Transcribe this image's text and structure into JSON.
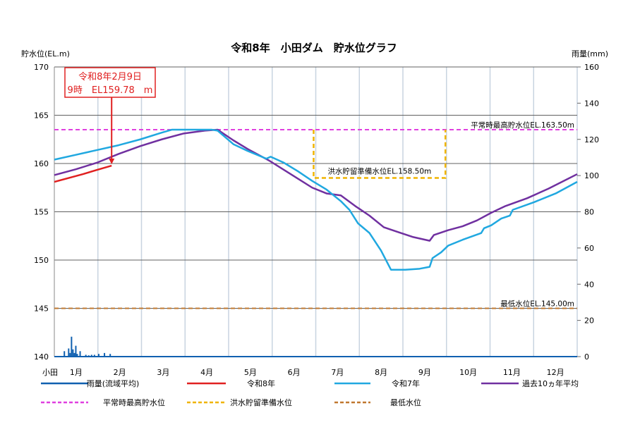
{
  "chart_data": {
    "type": "line",
    "title": "令和8年　小田ダム　貯水位グラフ",
    "ylabel": "貯水位(EL.m)",
    "y2label": "雨量(mm)",
    "ylim": [
      140,
      170
    ],
    "yticks": [
      140,
      145,
      150,
      155,
      160,
      165,
      170
    ],
    "y2lim": [
      0,
      160
    ],
    "y2ticks": [
      0,
      20,
      40,
      60,
      80,
      100,
      120,
      140,
      160
    ],
    "xlabel_prefix": "小田",
    "months": [
      "1月",
      "2月",
      "3月",
      "4月",
      "5月",
      "6月",
      "7月",
      "8月",
      "9月",
      "10月",
      "11月",
      "12月"
    ],
    "x_unit": "day of year",
    "grid": true,
    "annotation": {
      "line1": "令和8年2月9日",
      "line2": "9時　EL159.78　m",
      "day": 40,
      "value": 159.78
    },
    "reference_lines": [
      {
        "name": "平常時最高貯水位",
        "label": "平常時最高貯水位EL.163.50m",
        "value": 163.5,
        "color": "#e040e0"
      },
      {
        "name": "最低水位",
        "label": "最低水位EL.145.00m",
        "value": 145.0,
        "color": "#c07830"
      }
    ],
    "flood_reserve": {
      "name": "洪水貯留準備水位",
      "label": "洪水貯留準備水位EL.158.50m",
      "value": 158.5,
      "from_day": 181,
      "to_day": 273,
      "upper": 163.5,
      "color": "#f0b400"
    },
    "series": [
      {
        "name": "令和8年",
        "color": "#e02020",
        "points": [
          [
            0,
            158.1
          ],
          [
            10,
            158.5
          ],
          [
            20,
            158.9
          ],
          [
            30,
            159.35
          ],
          [
            40,
            159.78
          ]
        ]
      },
      {
        "name": "令和7年",
        "color": "#20a8e0",
        "points": [
          [
            0,
            160.4
          ],
          [
            15,
            160.9
          ],
          [
            30,
            161.4
          ],
          [
            45,
            161.9
          ],
          [
            60,
            162.5
          ],
          [
            75,
            163.2
          ],
          [
            82,
            163.5
          ],
          [
            110,
            163.5
          ],
          [
            114,
            163.4
          ],
          [
            125,
            162.0
          ],
          [
            135,
            161.3
          ],
          [
            148,
            160.5
          ],
          [
            151,
            160.7
          ],
          [
            160,
            160.1
          ],
          [
            170,
            159.2
          ],
          [
            180,
            158.2
          ],
          [
            190,
            157.3
          ],
          [
            200,
            156.1
          ],
          [
            206,
            155.2
          ],
          [
            212,
            153.8
          ],
          [
            220,
            152.8
          ],
          [
            228,
            151.0
          ],
          [
            235,
            149.0
          ],
          [
            245,
            149.0
          ],
          [
            255,
            149.1
          ],
          [
            262,
            149.3
          ],
          [
            264,
            150.2
          ],
          [
            270,
            150.8
          ],
          [
            275,
            151.5
          ],
          [
            285,
            152.1
          ],
          [
            298,
            152.8
          ],
          [
            300,
            153.3
          ],
          [
            305,
            153.6
          ],
          [
            312,
            154.3
          ],
          [
            318,
            154.6
          ],
          [
            320,
            155.2
          ],
          [
            335,
            156.0
          ],
          [
            350,
            156.9
          ],
          [
            365,
            158.1
          ]
        ]
      },
      {
        "name": "過去10ヵ年平均",
        "color": "#7030a0",
        "points": [
          [
            0,
            158.8
          ],
          [
            15,
            159.4
          ],
          [
            30,
            160.1
          ],
          [
            45,
            161.0
          ],
          [
            60,
            161.8
          ],
          [
            75,
            162.5
          ],
          [
            90,
            163.1
          ],
          [
            105,
            163.4
          ],
          [
            114,
            163.5
          ],
          [
            125,
            162.4
          ],
          [
            135,
            161.5
          ],
          [
            150,
            160.3
          ],
          [
            165,
            158.9
          ],
          [
            180,
            157.5
          ],
          [
            190,
            156.9
          ],
          [
            200,
            156.7
          ],
          [
            210,
            155.6
          ],
          [
            220,
            154.6
          ],
          [
            230,
            153.4
          ],
          [
            240,
            152.9
          ],
          [
            250,
            152.4
          ],
          [
            262,
            152.0
          ],
          [
            265,
            152.6
          ],
          [
            275,
            153.1
          ],
          [
            285,
            153.5
          ],
          [
            295,
            154.1
          ],
          [
            305,
            154.9
          ],
          [
            315,
            155.6
          ],
          [
            330,
            156.4
          ],
          [
            345,
            157.4
          ],
          [
            365,
            158.9
          ]
        ]
      }
    ],
    "rain": {
      "name": "雨量(流域平均)",
      "color": "#1060b0",
      "bars": [
        [
          7,
          3
        ],
        [
          10,
          4.5
        ],
        [
          11,
          2
        ],
        [
          12,
          11
        ],
        [
          13,
          4
        ],
        [
          14,
          2
        ],
        [
          15,
          6
        ],
        [
          16,
          1.5
        ],
        [
          18,
          3
        ],
        [
          22,
          1
        ],
        [
          24,
          0.7
        ],
        [
          26,
          1
        ],
        [
          28,
          1
        ],
        [
          31,
          1.5
        ],
        [
          35,
          2
        ],
        [
          39,
          1.5
        ]
      ]
    },
    "legend": [
      {
        "label": "雨量(流域平均)",
        "color": "#1060b0",
        "style": "solid"
      },
      {
        "label": "令和8年",
        "color": "#e02020",
        "style": "solid"
      },
      {
        "label": "令和7年",
        "color": "#20a8e0",
        "style": "solid"
      },
      {
        "label": "過去10ヵ年平均",
        "color": "#7030a0",
        "style": "solid"
      },
      {
        "label": "平常時最高貯水位",
        "color": "#e040e0",
        "style": "dashed"
      },
      {
        "label": "洪水貯留準備水位",
        "color": "#f0b400",
        "style": "dashed"
      },
      {
        "label": "最低水位",
        "color": "#c07830",
        "style": "dashed"
      }
    ],
    "legend_position": "bottom"
  }
}
